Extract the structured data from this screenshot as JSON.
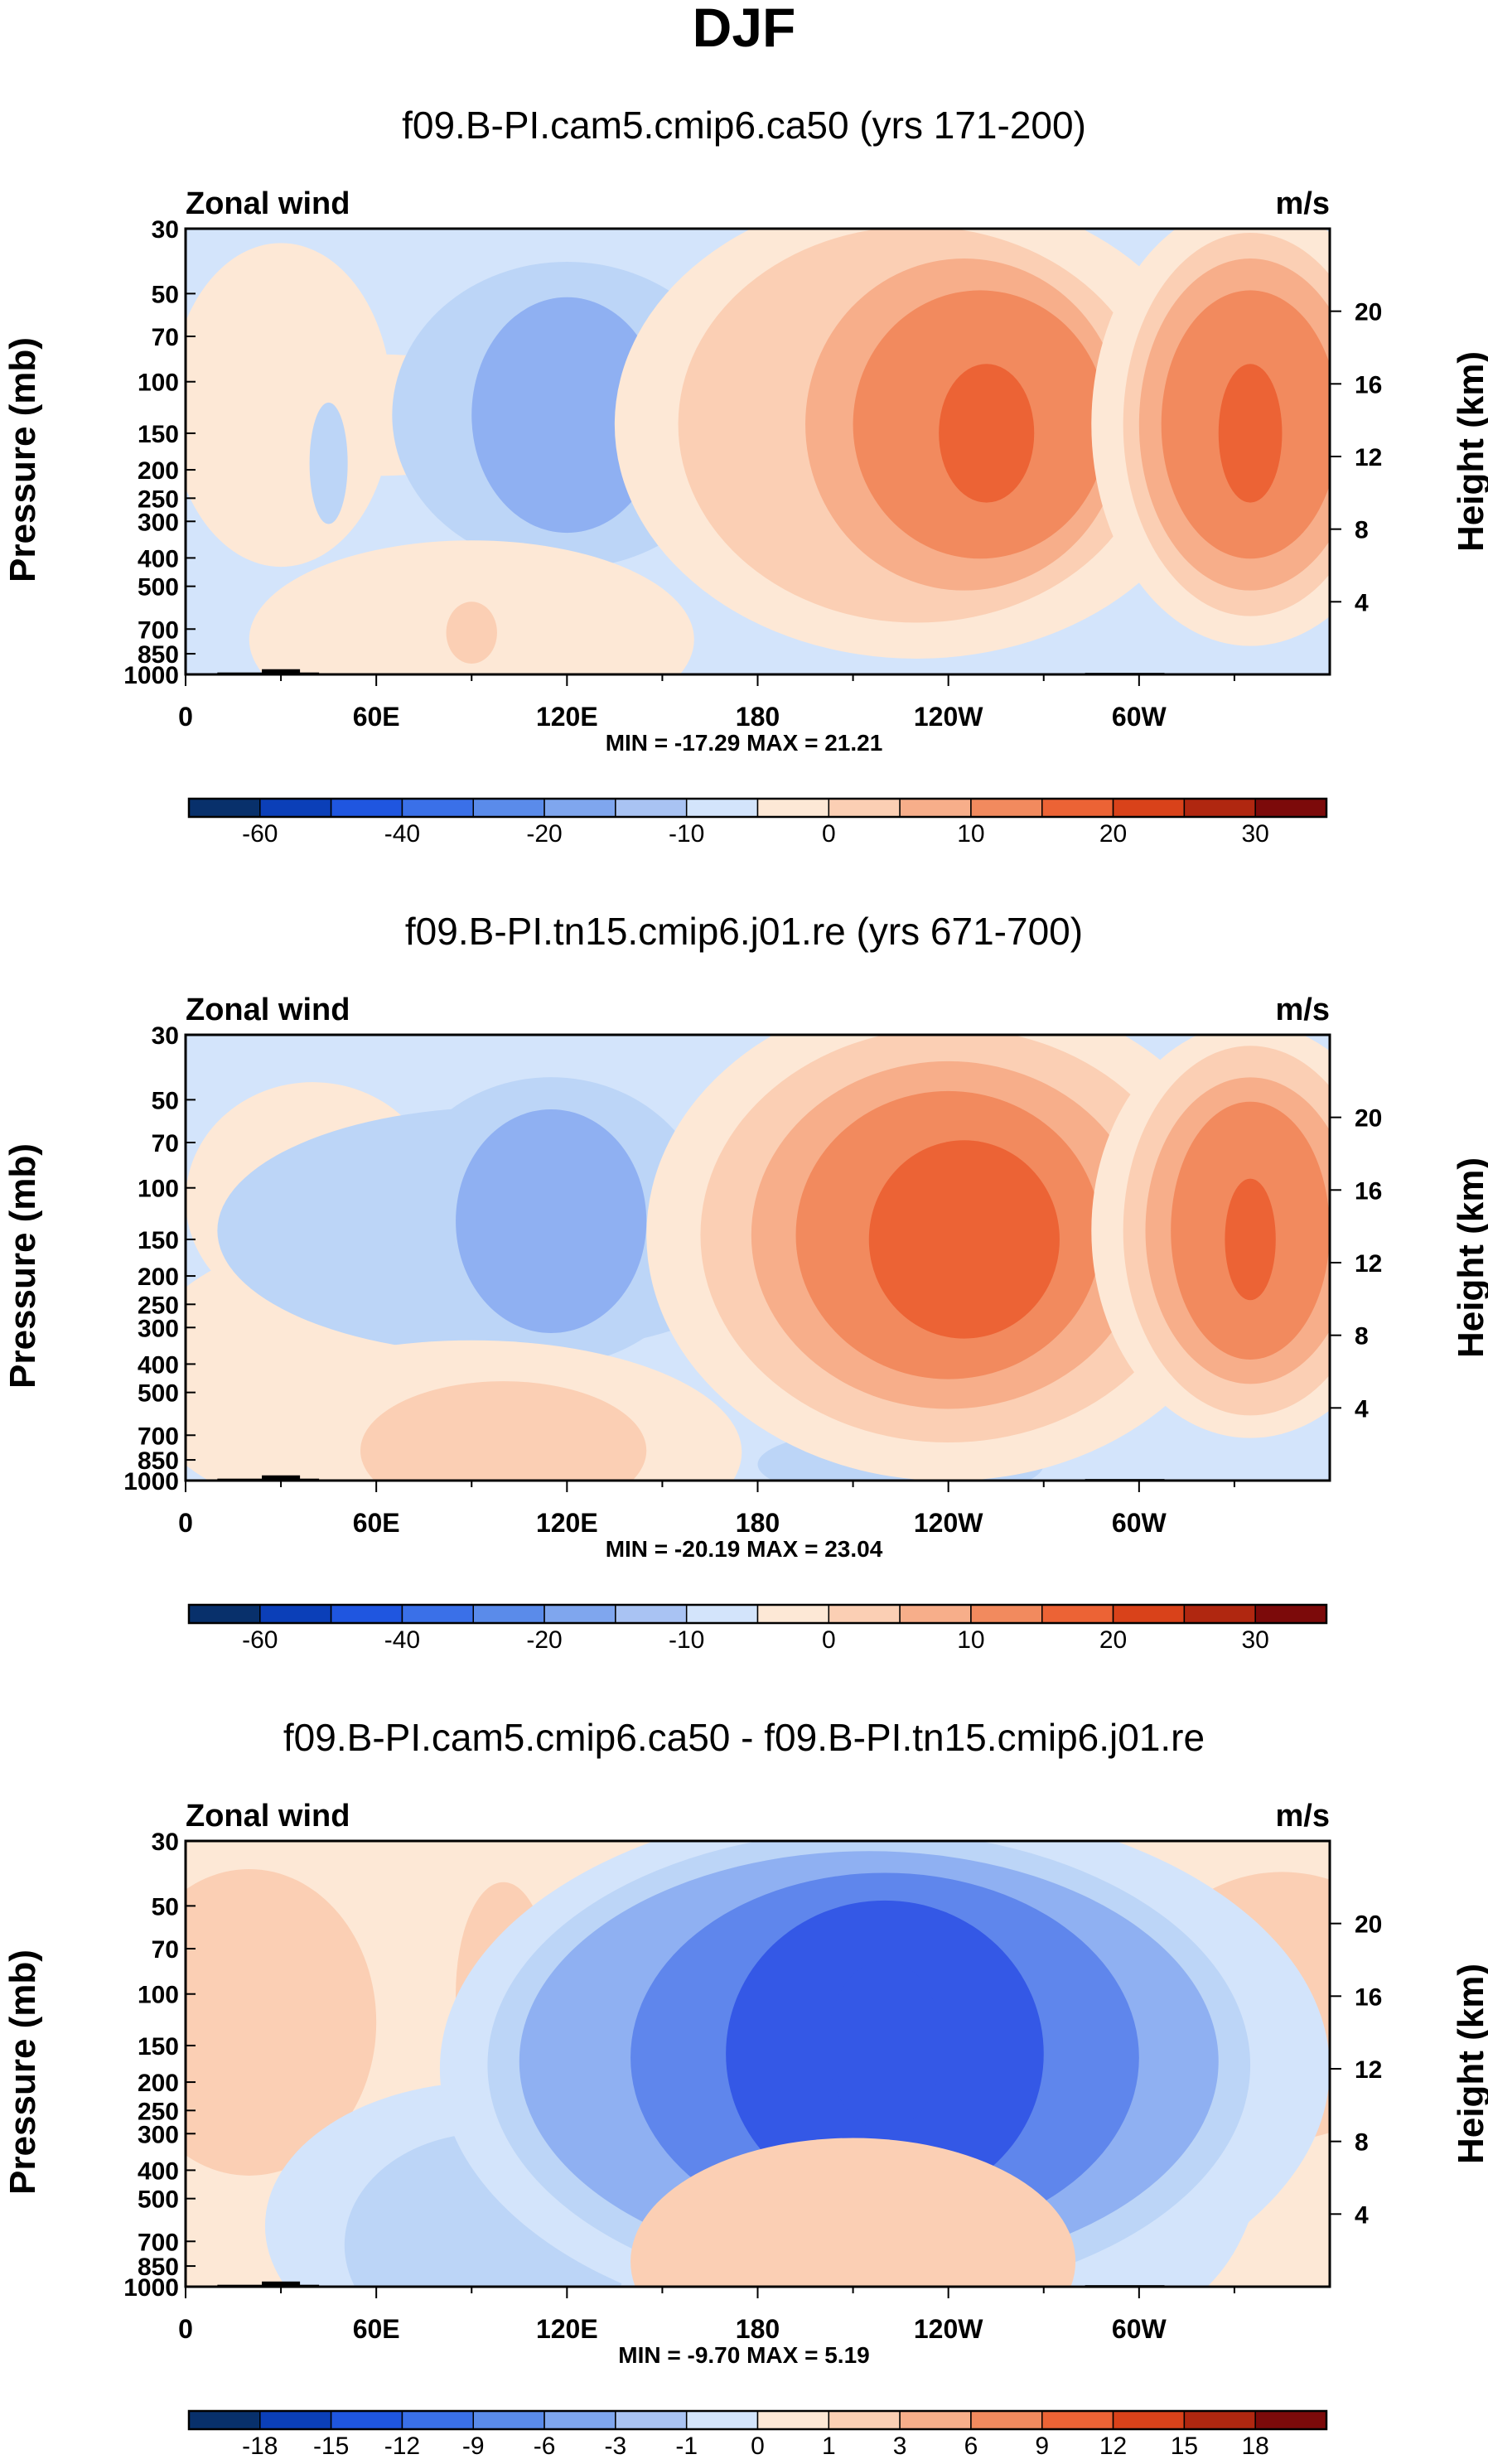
{
  "figure": {
    "title": "DJF"
  },
  "colormaps": {
    "full": [
      "#08306b",
      "#0b3fb8",
      "#1f56e0",
      "#3a70e8",
      "#5a8bea",
      "#7fa6ee",
      "#a9c3f3",
      "#d3e4fb",
      "#fde8d6",
      "#fbcfb4",
      "#f7ae8a",
      "#f28a5e",
      "#ec6335",
      "#d9421a",
      "#b02710",
      "#7c0a0a"
    ],
    "contour_neg": [
      "#3458e6",
      "#5f86ec",
      "#8fb0f2",
      "#bcd5f7",
      "#d3e4fb"
    ],
    "contour_pos": [
      "#fde8d6",
      "#fbcfb4",
      "#f7ae8a",
      "#f28a5e",
      "#ec6335",
      "#d9421a"
    ]
  },
  "chart_data": [
    {
      "type": "contour",
      "title": "f09.B-PI.cam5.cmip6.ca50 (yrs 171-200)",
      "left_label": "Zonal wind",
      "right_label": "m/s",
      "ylabel": "Pressure (mb)",
      "ylabel_right": "Height (km)",
      "xticks": [
        "0",
        "60E",
        "120E",
        "180",
        "120W",
        "60W"
      ],
      "xtick_lons": [
        0,
        60,
        120,
        180,
        240,
        300
      ],
      "xlim": [
        0,
        360
      ],
      "yticks": [
        "30",
        "50",
        "70",
        "100",
        "150",
        "200",
        "250",
        "300",
        "400",
        "500",
        "700",
        "850",
        "1000"
      ],
      "ytick_values": [
        30,
        50,
        70,
        100,
        150,
        200,
        250,
        300,
        400,
        500,
        700,
        850,
        1000
      ],
      "ylim": [
        1000,
        30
      ],
      "height_ticks": [
        "4",
        "8",
        "12",
        "16",
        "20"
      ],
      "height_values": [
        4,
        8,
        12,
        16,
        20
      ],
      "stats": "MIN = -17.29  MAX =  21.21",
      "colorbar": {
        "labels": [
          "-60",
          "-40",
          "-20",
          "-10",
          "0",
          "10",
          "20",
          "30"
        ],
        "label_boundaries": [
          1,
          3,
          5,
          7,
          9,
          11,
          13,
          15
        ]
      },
      "background_level": -1,
      "features": [
        {
          "lon": 30,
          "p": 120,
          "rx": 35,
          "rp": 2.2,
          "level": 1
        },
        {
          "lon": 60,
          "p": 130,
          "rx": 55,
          "rp": 0.5,
          "level": 1
        },
        {
          "lon": 120,
          "p": 130,
          "rx": 55,
          "rp": 2.0,
          "level": -2
        },
        {
          "lon": 120,
          "p": 130,
          "rx": 30,
          "rp": 1.3,
          "level": -3
        },
        {
          "lon": 45,
          "p": 190,
          "rx": 6,
          "rp": 0.5,
          "level": -2
        },
        {
          "lon": 230,
          "p": 140,
          "rx": 95,
          "rp": 4.5,
          "level": 1
        },
        {
          "lon": 230,
          "p": 140,
          "rx": 75,
          "rp": 3.2,
          "level": 2
        },
        {
          "lon": 245,
          "p": 140,
          "rx": 50,
          "rp": 2.3,
          "level": 3
        },
        {
          "lon": 250,
          "p": 140,
          "rx": 40,
          "rp": 1.6,
          "level": 4
        },
        {
          "lon": 252,
          "p": 150,
          "rx": 15,
          "rp": 0.6,
          "level": 5
        },
        {
          "lon": 335,
          "p": 140,
          "rx": 50,
          "rp": 4.0,
          "level": 1
        },
        {
          "lon": 335,
          "p": 140,
          "rx": 40,
          "rp": 3.0,
          "level": 2
        },
        {
          "lon": 335,
          "p": 140,
          "rx": 35,
          "rp": 2.3,
          "level": 3
        },
        {
          "lon": 335,
          "p": 140,
          "rx": 28,
          "rp": 1.6,
          "level": 4
        },
        {
          "lon": 335,
          "p": 150,
          "rx": 10,
          "rp": 0.6,
          "level": 5
        },
        {
          "lon": 90,
          "p": 760,
          "rx": 70,
          "rp": 1.0,
          "level": 1
        },
        {
          "lon": 90,
          "p": 720,
          "rx": 8,
          "rp": 0.2,
          "level": 2
        }
      ],
      "terrain": [
        {
          "lon0": 10,
          "lon1": 42,
          "p": 985
        },
        {
          "lon0": 24,
          "lon1": 36,
          "p": 960
        },
        {
          "lon0": 283,
          "lon1": 308,
          "p": 988
        }
      ]
    },
    {
      "type": "contour",
      "title": "f09.B-PI.tn15.cmip6.j01.re (yrs 671-700)",
      "left_label": "Zonal wind",
      "right_label": "m/s",
      "ylabel": "Pressure (mb)",
      "ylabel_right": "Height (km)",
      "xticks": [
        "0",
        "60E",
        "120E",
        "180",
        "120W",
        "60W"
      ],
      "xtick_lons": [
        0,
        60,
        120,
        180,
        240,
        300
      ],
      "xlim": [
        0,
        360
      ],
      "yticks": [
        "30",
        "50",
        "70",
        "100",
        "150",
        "200",
        "250",
        "300",
        "400",
        "500",
        "700",
        "850",
        "1000"
      ],
      "ytick_values": [
        30,
        50,
        70,
        100,
        150,
        200,
        250,
        300,
        400,
        500,
        700,
        850,
        1000
      ],
      "ylim": [
        1000,
        30
      ],
      "height_ticks": [
        "4",
        "8",
        "12",
        "16",
        "20"
      ],
      "height_values": [
        4,
        8,
        12,
        16,
        20
      ],
      "stats": "MIN = -20.19  MAX = 23.04",
      "colorbar": {
        "labels": [
          "-60",
          "-40",
          "-20",
          "-10",
          "0",
          "10",
          "20",
          "30"
        ],
        "label_boundaries": [
          1,
          3,
          5,
          7,
          9,
          11,
          13,
          15
        ]
      },
      "background_level": -1,
      "features": [
        {
          "lon": 40,
          "p": 110,
          "rx": 40,
          "rp": 1.3,
          "level": 1
        },
        {
          "lon": 45,
          "p": 440,
          "rx": 60,
          "rp": 1.6,
          "level": 1
        },
        {
          "lon": 100,
          "p": 140,
          "rx": 90,
          "rp": 1.4,
          "level": -2
        },
        {
          "lon": 115,
          "p": 130,
          "rx": 50,
          "rp": 1.8,
          "level": -2
        },
        {
          "lon": 115,
          "p": 130,
          "rx": 30,
          "rp": 1.2,
          "level": -3
        },
        {
          "lon": 90,
          "p": 800,
          "rx": 85,
          "rp": 1.2,
          "level": 1
        },
        {
          "lon": 100,
          "p": 790,
          "rx": 45,
          "rp": 0.6,
          "level": 2
        },
        {
          "lon": 225,
          "p": 880,
          "rx": 45,
          "rp": 0.25,
          "level": -2
        },
        {
          "lon": 240,
          "p": 145,
          "rx": 95,
          "rp": 5.0,
          "level": 1
        },
        {
          "lon": 240,
          "p": 145,
          "rx": 78,
          "rp": 3.5,
          "level": 2
        },
        {
          "lon": 240,
          "p": 145,
          "rx": 62,
          "rp": 2.5,
          "level": 3
        },
        {
          "lon": 240,
          "p": 145,
          "rx": 48,
          "rp": 1.8,
          "level": 4
        },
        {
          "lon": 245,
          "p": 150,
          "rx": 30,
          "rp": 1.0,
          "level": 5
        },
        {
          "lon": 335,
          "p": 140,
          "rx": 50,
          "rp": 3.5,
          "level": 1
        },
        {
          "lon": 335,
          "p": 140,
          "rx": 40,
          "rp": 2.8,
          "level": 2
        },
        {
          "lon": 335,
          "p": 140,
          "rx": 33,
          "rp": 2.0,
          "level": 3
        },
        {
          "lon": 335,
          "p": 140,
          "rx": 25,
          "rp": 1.5,
          "level": 4
        },
        {
          "lon": 335,
          "p": 150,
          "rx": 8,
          "rp": 0.5,
          "level": 5
        }
      ],
      "terrain": [
        {
          "lon0": 10,
          "lon1": 42,
          "p": 985
        },
        {
          "lon0": 24,
          "lon1": 36,
          "p": 960
        },
        {
          "lon0": 110,
          "lon1": 165,
          "p": 992
        },
        {
          "lon0": 283,
          "lon1": 308,
          "p": 988
        }
      ]
    },
    {
      "type": "contour",
      "title": "f09.B-PI.cam5.cmip6.ca50 - f09.B-PI.tn15.cmip6.j01.re",
      "left_label": "Zonal wind",
      "right_label": "m/s",
      "ylabel": "Pressure (mb)",
      "ylabel_right": "Height (km)",
      "xticks": [
        "0",
        "60E",
        "120E",
        "180",
        "120W",
        "60W"
      ],
      "xtick_lons": [
        0,
        60,
        120,
        180,
        240,
        300
      ],
      "xlim": [
        0,
        360
      ],
      "yticks": [
        "30",
        "50",
        "70",
        "100",
        "150",
        "200",
        "250",
        "300",
        "400",
        "500",
        "700",
        "850",
        "1000"
      ],
      "ytick_values": [
        30,
        50,
        70,
        100,
        150,
        200,
        250,
        300,
        400,
        500,
        700,
        850,
        1000
      ],
      "ylim": [
        1000,
        30
      ],
      "height_ticks": [
        "4",
        "8",
        "12",
        "16",
        "20"
      ],
      "height_values": [
        4,
        8,
        12,
        16,
        20
      ],
      "stats": "MIN =  -9.70  MAX =  5.19",
      "colorbar": {
        "labels": [
          "-18",
          "-15",
          "-12",
          "-9",
          "-6",
          "-3",
          "-1",
          "0",
          "1",
          "3",
          "6",
          "9",
          "12",
          "15",
          "18"
        ],
        "label_boundaries": [
          1,
          2,
          3,
          4,
          5,
          6,
          7,
          8,
          9,
          10,
          11,
          12,
          13,
          14,
          15
        ]
      },
      "background_level": 1,
      "features": [
        {
          "lon": 20,
          "p": 125,
          "rx": 40,
          "rp": 2.0,
          "level": 2
        },
        {
          "lon": 100,
          "p": 100,
          "rx": 15,
          "rp": 1.2,
          "level": 2
        },
        {
          "lon": 345,
          "p": 110,
          "rx": 45,
          "rp": 1.6,
          "level": 2
        },
        {
          "lon": 95,
          "p": 620,
          "rx": 70,
          "rp": 1.8,
          "level": -1
        },
        {
          "lon": 95,
          "p": 720,
          "rx": 45,
          "rp": 1.2,
          "level": -2
        },
        {
          "lon": 300,
          "p": 280,
          "rx": 40,
          "rp": 3.0,
          "level": -1
        },
        {
          "lon": 280,
          "p": 160,
          "rx": 20,
          "rp": 0.4,
          "level": -2
        },
        {
          "lon": 220,
          "p": 180,
          "rx": 140,
          "rp": 6.0,
          "level": -1
        },
        {
          "lon": 215,
          "p": 175,
          "rx": 120,
          "rp": 4.5,
          "level": -2
        },
        {
          "lon": 215,
          "p": 170,
          "rx": 110,
          "rp": 3.6,
          "level": -3
        },
        {
          "lon": 220,
          "p": 165,
          "rx": 80,
          "rp": 2.8,
          "level": -4
        },
        {
          "lon": 220,
          "p": 160,
          "rx": 50,
          "rp": 2.0,
          "level": -5
        },
        {
          "lon": 220,
          "p": 150,
          "rx": 18,
          "rp": 0.8,
          "level": -6
        },
        {
          "lon": 210,
          "p": 820,
          "rx": 70,
          "rp": 1.4,
          "level": 2
        }
      ],
      "terrain": [
        {
          "lon0": 10,
          "lon1": 42,
          "p": 985
        },
        {
          "lon0": 24,
          "lon1": 36,
          "p": 960
        },
        {
          "lon0": 110,
          "lon1": 165,
          "p": 992
        },
        {
          "lon0": 283,
          "lon1": 308,
          "p": 988
        }
      ]
    }
  ]
}
